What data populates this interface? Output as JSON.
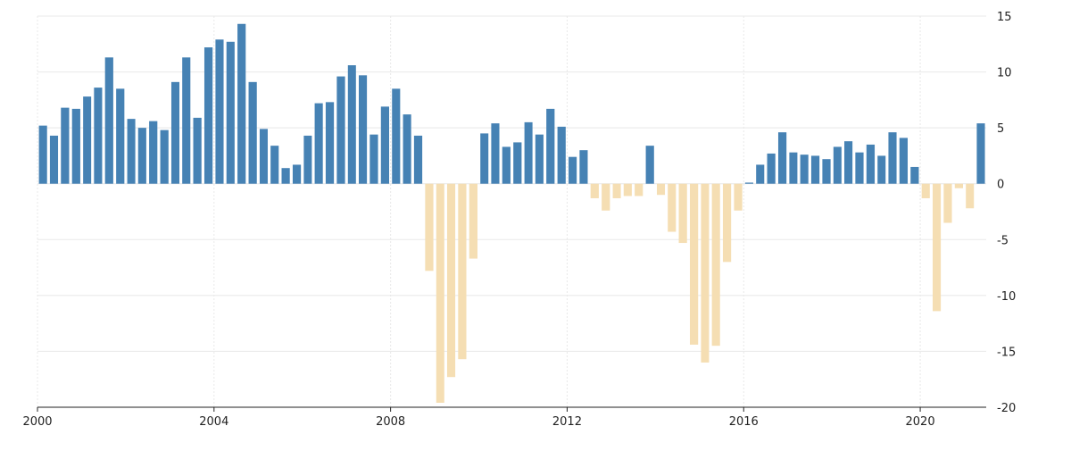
{
  "chart_data": {
    "type": "bar",
    "title": "",
    "xlabel": "",
    "ylabel": "",
    "ylim": [
      -20,
      15
    ],
    "y_ticks": [
      15,
      10,
      5,
      0,
      -5,
      -10,
      -15,
      -20
    ],
    "x_ticks": [
      "2000",
      "2004",
      "2008",
      "2012",
      "2016",
      "2020"
    ],
    "x_range": [
      "2000-01-01",
      "2021-06-30"
    ],
    "y_axis_side": "right",
    "grid": true,
    "legend": "none",
    "colors": {
      "positive": "#4682b4",
      "negative": "#f5deb3"
    },
    "series": [
      {
        "frequency": "quarterly",
        "first_period": "2000-Q1",
        "values": [
          5.2,
          4.3,
          6.8,
          6.7,
          7.8,
          8.6,
          11.3,
          8.5,
          5.8,
          5.0,
          5.6,
          4.8,
          9.1,
          11.3,
          5.9,
          12.2,
          12.9,
          12.7,
          14.3,
          9.1,
          4.9,
          3.4,
          1.4,
          1.7,
          4.3,
          7.2,
          7.3,
          9.6,
          10.6,
          9.7,
          4.4,
          6.9,
          8.5,
          6.2,
          4.3,
          -7.8,
          -19.6,
          -17.3,
          -15.7,
          -6.7,
          4.5,
          5.4,
          3.3,
          3.7,
          5.5,
          4.4,
          6.7,
          5.1,
          2.4,
          3.0,
          -1.3,
          -2.4,
          -1.3,
          -1.1,
          -1.1,
          3.4,
          -1.0,
          -4.3,
          -5.3,
          -14.4,
          -16.0,
          -14.5,
          -7.0,
          -2.4,
          0.1,
          1.7,
          2.7,
          4.6,
          2.8,
          2.6,
          2.5,
          2.2,
          3.3,
          3.8,
          2.8,
          3.5,
          2.5,
          4.6,
          4.1,
          1.5,
          -1.3,
          -11.4,
          -3.5,
          -0.4,
          -2.2,
          5.4
        ]
      }
    ]
  }
}
